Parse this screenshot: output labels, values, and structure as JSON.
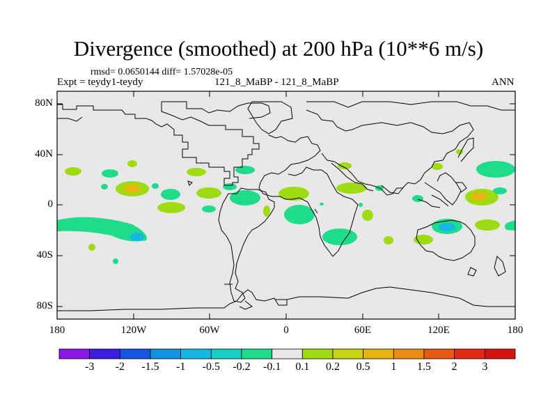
{
  "title": "Divergence (smoothed) at 200 hPa (10**6 m/s)",
  "stats": "rmsd= 0.0650144 diff= 1.57028e-05",
  "experiment": "Expt = teydy1-teydy",
  "case": "121_8_MaBP - 121_8_MaBP",
  "season": "ANN",
  "lat_labels": [
    "80N",
    "40N",
    "0",
    "40S",
    "80S"
  ],
  "lon_labels": [
    "180",
    "120W",
    "60W",
    "0",
    "60E",
    "120E",
    "180"
  ],
  "colorbar": {
    "labels": [
      "-3",
      "-2",
      "-1.5",
      "-1",
      "-0.5",
      "-0.2",
      "-0.1",
      "0.1",
      "0.2",
      "0.5",
      "1",
      "1.5",
      "2",
      "3"
    ],
    "colors": [
      "#8a17e6",
      "#3a1fe0",
      "#1456e0",
      "#0f93e0",
      "#16b8e3",
      "#17cfc2",
      "#20dc8a",
      "#e8e8e8",
      "#9edb10",
      "#c9d414",
      "#e8b414",
      "#eb8a14",
      "#e85a14",
      "#e02a14",
      "#d4140f"
    ]
  },
  "map": {
    "lon_range": [
      -180,
      180
    ],
    "lat_range": [
      -90,
      90
    ],
    "land_fill": "#e8e8e8"
  }
}
